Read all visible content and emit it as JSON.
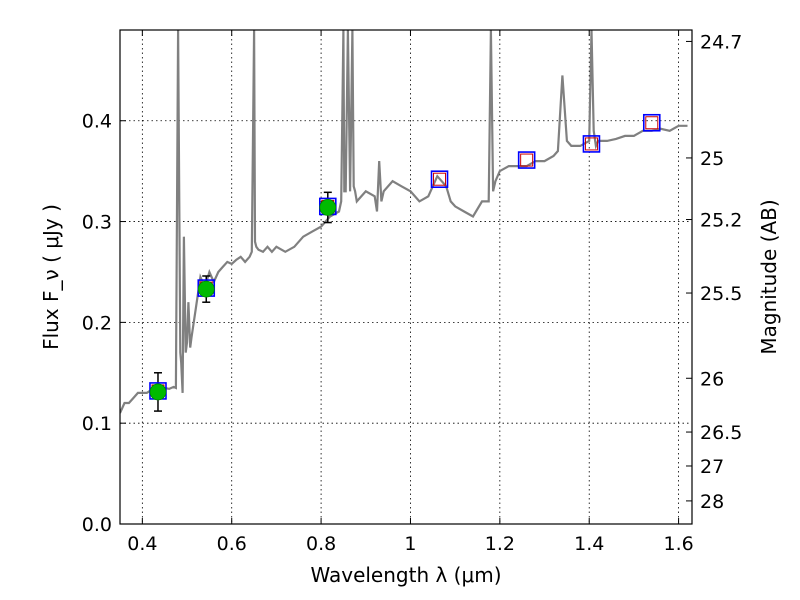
{
  "chart_data": {
    "type": "line",
    "xlabel": "Wavelength  λ (μm)",
    "ylabel": "Flux  F_ν  ( μJy )",
    "ylabel_right": "Magnitude (AB)",
    "xlim": [
      0.35,
      1.63
    ],
    "ylim": [
      0.0,
      0.49
    ],
    "grid": true,
    "x_ticks": [
      {
        "value": 0.4,
        "label": "0.4"
      },
      {
        "value": 0.6,
        "label": "0.6"
      },
      {
        "value": 0.8,
        "label": "0.8"
      },
      {
        "value": 1.0,
        "label": "1"
      },
      {
        "value": 1.2,
        "label": "1.2"
      },
      {
        "value": 1.4,
        "label": "1.4"
      },
      {
        "value": 1.6,
        "label": "1.6"
      }
    ],
    "y_ticks": [
      {
        "value": 0.0,
        "label": "0.0"
      },
      {
        "value": 0.1,
        "label": "0.1"
      },
      {
        "value": 0.2,
        "label": "0.2"
      },
      {
        "value": 0.3,
        "label": "0.3"
      },
      {
        "value": 0.4,
        "label": "0.4"
      }
    ],
    "y_right_ticks": [
      {
        "value": 24.7,
        "label": "24.7"
      },
      {
        "value": 25.0,
        "label": "25"
      },
      {
        "value": 25.2,
        "label": "25.2"
      },
      {
        "value": 25.5,
        "label": "25.5"
      },
      {
        "value": 26.0,
        "label": "26"
      },
      {
        "value": 26.5,
        "label": "26.5"
      },
      {
        "value": 27.0,
        "label": "27"
      },
      {
        "value": 28.0,
        "label": "28"
      }
    ],
    "colors": {
      "spectrum": "#808080",
      "observed_marker": "#00bb00",
      "model_box": "#0000ff",
      "model_inner": "#cc0000",
      "grid": "#000000"
    },
    "series": [
      {
        "kind": "spectrum",
        "x": [
          0.35,
          0.36,
          0.37,
          0.38,
          0.39,
          0.4,
          0.41,
          0.42,
          0.43,
          0.44,
          0.45,
          0.46,
          0.47,
          0.475,
          0.48,
          0.485,
          0.487,
          0.49,
          0.493,
          0.497,
          0.5,
          0.503,
          0.507,
          0.51,
          0.52,
          0.53,
          0.54,
          0.55,
          0.56,
          0.57,
          0.58,
          0.59,
          0.6,
          0.61,
          0.62,
          0.63,
          0.64,
          0.645,
          0.65,
          0.652,
          0.655,
          0.66,
          0.67,
          0.68,
          0.69,
          0.7,
          0.72,
          0.74,
          0.76,
          0.78,
          0.8,
          0.82,
          0.84,
          0.845,
          0.85,
          0.852,
          0.855,
          0.86,
          0.865,
          0.87,
          0.873,
          0.876,
          0.88,
          0.9,
          0.92,
          0.925,
          0.93,
          0.935,
          0.94,
          0.96,
          0.98,
          1.0,
          1.02,
          1.04,
          1.06,
          1.08,
          1.09,
          1.1,
          1.12,
          1.14,
          1.16,
          1.175,
          1.18,
          1.185,
          1.19,
          1.2,
          1.22,
          1.24,
          1.26,
          1.28,
          1.3,
          1.32,
          1.33,
          1.34,
          1.35,
          1.36,
          1.38,
          1.4,
          1.405,
          1.41,
          1.415,
          1.42,
          1.44,
          1.46,
          1.48,
          1.5,
          1.52,
          1.54,
          1.56,
          1.58,
          1.6,
          1.62
        ],
        "y": [
          0.11,
          0.12,
          0.12,
          0.125,
          0.13,
          0.13,
          0.13,
          0.133,
          0.132,
          0.135,
          0.135,
          0.134,
          0.136,
          0.135,
          0.49,
          0.17,
          0.16,
          0.13,
          0.285,
          0.17,
          0.18,
          0.22,
          0.175,
          0.185,
          0.215,
          0.245,
          0.235,
          0.25,
          0.24,
          0.25,
          0.255,
          0.26,
          0.258,
          0.262,
          0.265,
          0.26,
          0.265,
          0.27,
          0.49,
          0.28,
          0.275,
          0.272,
          0.27,
          0.275,
          0.27,
          0.275,
          0.27,
          0.275,
          0.285,
          0.29,
          0.295,
          0.305,
          0.31,
          0.32,
          0.49,
          0.33,
          0.33,
          0.49,
          0.33,
          0.49,
          0.335,
          0.33,
          0.32,
          0.33,
          0.325,
          0.31,
          0.36,
          0.32,
          0.33,
          0.34,
          0.335,
          0.33,
          0.32,
          0.325,
          0.345,
          0.335,
          0.32,
          0.315,
          0.31,
          0.305,
          0.32,
          0.32,
          0.49,
          0.33,
          0.34,
          0.35,
          0.355,
          0.355,
          0.355,
          0.36,
          0.36,
          0.365,
          0.37,
          0.445,
          0.38,
          0.375,
          0.375,
          0.38,
          0.49,
          0.39,
          0.375,
          0.38,
          0.38,
          0.382,
          0.385,
          0.385,
          0.39,
          0.39,
          0.392,
          0.39,
          0.395,
          0.395
        ]
      },
      {
        "kind": "observed",
        "x": [
          0.435,
          0.543,
          0.815
        ],
        "y": [
          0.131,
          0.233,
          0.314
        ],
        "yerr": [
          0.019,
          0.013,
          0.015
        ]
      },
      {
        "kind": "model-boxes",
        "x": [
          0.435,
          0.543,
          0.815,
          1.065,
          1.26,
          1.405,
          1.54
        ],
        "y": [
          0.132,
          0.234,
          0.315,
          0.342,
          0.361,
          0.377,
          0.398
        ]
      }
    ]
  }
}
